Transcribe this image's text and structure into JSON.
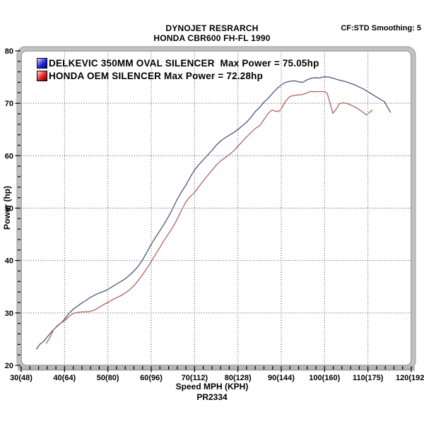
{
  "header": {
    "title_line1": "DYNOJET RESRARCH",
    "title_line2": "HONDA CBR600 FH-FL 1990",
    "smoothing_label": "CF:STD Smoothing: 5"
  },
  "chart_data": {
    "type": "line",
    "title": "DYNOJET RESRARCH",
    "subtitle": "HONDA CBR600 FH-FL 1990",
    "xlabel": "Speed MPH (KPH)",
    "ylabel": "Power (hp)",
    "footnote": "PR2334",
    "xlim": [
      30,
      120
    ],
    "ylim": [
      20,
      80
    ],
    "x_minor_step": 2,
    "y_minor_step": 2,
    "grid": "dotted-at-major-ticks",
    "legend_position": "top-left-inside",
    "x_ticks": [
      {
        "mph": 30,
        "label": "30(48)"
      },
      {
        "mph": 40,
        "label": "40(64)"
      },
      {
        "mph": 50,
        "label": "50(80)"
      },
      {
        "mph": 60,
        "label": "60(96)"
      },
      {
        "mph": 70,
        "label": "70(112)"
      },
      {
        "mph": 80,
        "label": "80(128)"
      },
      {
        "mph": 90,
        "label": "90(144)"
      },
      {
        "mph": 100,
        "label": "100(160)"
      },
      {
        "mph": 110,
        "label": "110(175)"
      },
      {
        "mph": 120,
        "label": "120(192)"
      }
    ],
    "y_ticks": [
      20,
      30,
      40,
      50,
      60,
      70,
      80
    ],
    "series": [
      {
        "name": "DELKEVIC 350MM OVAL SILENCER",
        "legend": "DELKEVIC 350MM OVAL SILENCER  Max Power = 75.05hp",
        "max_power_hp": 75.05,
        "swatch_color": "#2525d8",
        "line_color": "#4b567f",
        "points": [
          [
            33.5,
            23.1
          ],
          [
            34.3,
            24.0
          ],
          [
            35.2,
            24.6
          ],
          [
            36.2,
            25.6
          ],
          [
            37.2,
            26.6
          ],
          [
            38.2,
            27.4
          ],
          [
            39.2,
            28.1
          ],
          [
            40,
            28.8
          ],
          [
            41,
            29.9
          ],
          [
            42,
            30.7
          ],
          [
            43,
            31.3
          ],
          [
            44,
            31.9
          ],
          [
            45,
            32.4
          ],
          [
            46,
            33.0
          ],
          [
            47,
            33.4
          ],
          [
            48,
            33.8
          ],
          [
            49,
            34.1
          ],
          [
            50,
            34.5
          ],
          [
            51,
            35.0
          ],
          [
            52,
            35.5
          ],
          [
            53,
            36.0
          ],
          [
            54,
            36.5
          ],
          [
            55,
            37.2
          ],
          [
            56,
            38.0
          ],
          [
            57,
            38.9
          ],
          [
            58,
            40.1
          ],
          [
            59,
            41.6
          ],
          [
            60,
            43.1
          ],
          [
            61,
            44.4
          ],
          [
            62,
            45.7
          ],
          [
            63,
            47.0
          ],
          [
            64,
            48.4
          ],
          [
            65,
            50.0
          ],
          [
            66,
            51.7
          ],
          [
            67,
            53.1
          ],
          [
            68,
            54.4
          ],
          [
            69,
            55.9
          ],
          [
            70,
            57.3
          ],
          [
            71,
            58.3
          ],
          [
            72,
            59.2
          ],
          [
            73,
            60.1
          ],
          [
            74,
            61.0
          ],
          [
            75,
            62.0
          ],
          [
            76,
            62.8
          ],
          [
            77,
            63.4
          ],
          [
            78,
            63.9
          ],
          [
            79,
            64.4
          ],
          [
            80,
            65.0
          ],
          [
            81,
            65.7
          ],
          [
            82,
            66.4
          ],
          [
            83,
            67.3
          ],
          [
            84,
            68.4
          ],
          [
            85,
            69.2
          ],
          [
            86,
            70.2
          ],
          [
            87,
            71.0
          ],
          [
            88,
            71.9
          ],
          [
            89,
            72.8
          ],
          [
            90,
            73.5
          ],
          [
            91,
            74.0
          ],
          [
            92,
            74.2
          ],
          [
            93,
            74.3
          ],
          [
            94,
            74.1
          ],
          [
            95,
            74.0
          ],
          [
            96,
            74.5
          ],
          [
            97,
            74.8
          ],
          [
            98,
            74.9
          ],
          [
            98.7,
            74.8
          ],
          [
            99.5,
            75.0
          ],
          [
            100.2,
            75.05
          ],
          [
            101,
            75.0
          ],
          [
            102,
            74.8
          ],
          [
            103,
            74.5
          ],
          [
            104,
            74.3
          ],
          [
            105,
            74.1
          ],
          [
            106,
            73.8
          ],
          [
            107,
            73.5
          ],
          [
            108,
            73.1
          ],
          [
            109,
            72.7
          ],
          [
            110,
            72.2
          ],
          [
            111,
            71.7
          ],
          [
            112,
            71.2
          ],
          [
            113,
            70.7
          ],
          [
            113.8,
            70.3
          ],
          [
            114.5,
            69.3
          ],
          [
            115.2,
            68.3
          ]
        ]
      },
      {
        "name": "HONDA OEM SILENCER",
        "legend": "HONDA OEM SILENCER Max Power = 72.28hp",
        "max_power_hp": 72.28,
        "swatch_color": "#e02424",
        "line_color": "#b26360",
        "points": [
          [
            35.8,
            24.2
          ],
          [
            36.6,
            25.3
          ],
          [
            37.4,
            26.7
          ],
          [
            38.2,
            27.5
          ],
          [
            39,
            28.0
          ],
          [
            40,
            28.5
          ],
          [
            41,
            29.3
          ],
          [
            42,
            29.9
          ],
          [
            43,
            30.1
          ],
          [
            44,
            30.2
          ],
          [
            45,
            30.2
          ],
          [
            46,
            30.3
          ],
          [
            47,
            30.6
          ],
          [
            48,
            31.1
          ],
          [
            49,
            31.6
          ],
          [
            50,
            32.0
          ],
          [
            51,
            32.5
          ],
          [
            52,
            32.9
          ],
          [
            53,
            33.3
          ],
          [
            54,
            33.8
          ],
          [
            55,
            34.4
          ],
          [
            56,
            35.2
          ],
          [
            57,
            36.2
          ],
          [
            58,
            37.3
          ],
          [
            59,
            38.5
          ],
          [
            60,
            39.8
          ],
          [
            61,
            41.2
          ],
          [
            62,
            42.5
          ],
          [
            63,
            43.9
          ],
          [
            64,
            45.1
          ],
          [
            65,
            46.4
          ],
          [
            66,
            47.9
          ],
          [
            67,
            49.6
          ],
          [
            68,
            51.2
          ],
          [
            69,
            52.2
          ],
          [
            70,
            53.0
          ],
          [
            71,
            54.1
          ],
          [
            72,
            55.2
          ],
          [
            73,
            56.2
          ],
          [
            74,
            57.2
          ],
          [
            75,
            58.2
          ],
          [
            76,
            59.0
          ],
          [
            77,
            59.6
          ],
          [
            78,
            60.2
          ],
          [
            79,
            60.9
          ],
          [
            80,
            61.8
          ],
          [
            81,
            62.7
          ],
          [
            82,
            63.6
          ],
          [
            83,
            64.4
          ],
          [
            84,
            65.2
          ],
          [
            85,
            65.7
          ],
          [
            86,
            66.9
          ],
          [
            87,
            68.1
          ],
          [
            87.8,
            68.7
          ],
          [
            88.6,
            68.5
          ],
          [
            89.3,
            68.4
          ],
          [
            90,
            68.9
          ],
          [
            91,
            70.4
          ],
          [
            92,
            71.3
          ],
          [
            93,
            71.5
          ],
          [
            94,
            71.6
          ],
          [
            95,
            71.7
          ],
          [
            96,
            72.0
          ],
          [
            96.8,
            72.28
          ],
          [
            97.6,
            72.2
          ],
          [
            98.4,
            72.25
          ],
          [
            99.2,
            72.25
          ],
          [
            100,
            72.2
          ],
          [
            100.6,
            71.9
          ],
          [
            101.2,
            70.2
          ],
          [
            101.9,
            68.1
          ],
          [
            102.6,
            68.8
          ],
          [
            103.4,
            69.9
          ],
          [
            104.2,
            70.1
          ],
          [
            105,
            70.0
          ],
          [
            106,
            69.7
          ],
          [
            107,
            69.3
          ],
          [
            108,
            68.8
          ],
          [
            109,
            68.2
          ],
          [
            109.6,
            67.8
          ],
          [
            110.3,
            68.2
          ],
          [
            111,
            68.7
          ]
        ]
      }
    ]
  }
}
